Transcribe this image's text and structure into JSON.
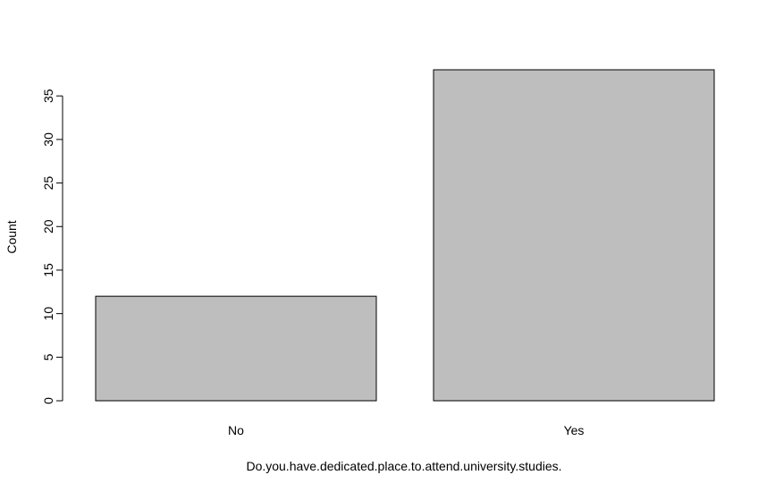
{
  "chart_data": {
    "type": "bar",
    "title": "",
    "xlabel": "Do.you.have.dedicated.place.to.attend.university.studies.",
    "ylabel": "Count",
    "categories": [
      "No",
      "Yes"
    ],
    "values": [
      12,
      38
    ],
    "y_ticks": [
      0,
      5,
      10,
      15,
      20,
      25,
      30,
      35
    ],
    "ylim": [
      0,
      38
    ],
    "grid": false,
    "legend": "none",
    "bar_fill": "#bebebe",
    "bar_stroke": "#000000"
  }
}
